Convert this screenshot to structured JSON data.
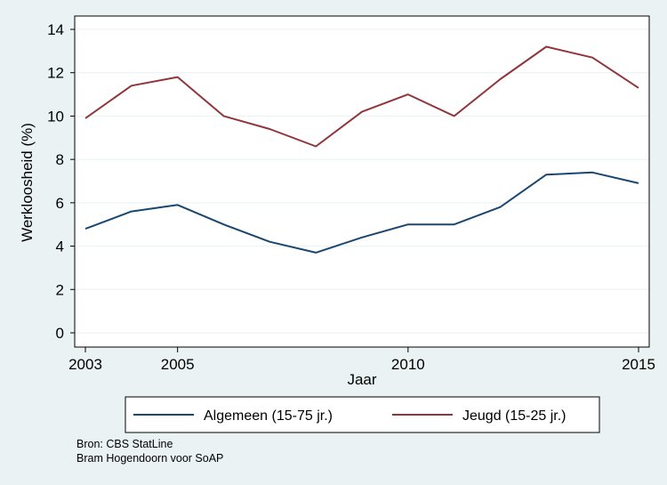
{
  "chart_data": {
    "type": "line",
    "xlabel": "Jaar",
    "ylabel": "Werkloosheid (%)",
    "xlim": [
      2003,
      2015
    ],
    "ylim": [
      0,
      14
    ],
    "x_ticks": [
      2003,
      2005,
      2010,
      2015
    ],
    "y_ticks": [
      0,
      2,
      4,
      6,
      8,
      10,
      12,
      14
    ],
    "grid": "horizontal",
    "legend_position": "bottom",
    "x": [
      2003,
      2004,
      2005,
      2006,
      2007,
      2008,
      2009,
      2010,
      2011,
      2012,
      2013,
      2014,
      2015
    ],
    "series": [
      {
        "name": "Algemeen (15-75 jr.)",
        "color": "#1a476f",
        "values": [
          4.8,
          5.6,
          5.9,
          5.0,
          4.2,
          3.7,
          4.4,
          5.0,
          5.0,
          5.8,
          7.3,
          7.4,
          6.9
        ]
      },
      {
        "name": "Jeugd (15-25 jr.)",
        "color": "#90353b",
        "values": [
          9.9,
          11.4,
          11.8,
          10.0,
          9.4,
          8.6,
          10.2,
          11.0,
          10.0,
          11.7,
          13.2,
          12.7,
          11.3
        ]
      }
    ]
  },
  "notes": {
    "source": "Bron: CBS StatLine",
    "author": "Bram Hogendoorn voor SoAP"
  }
}
